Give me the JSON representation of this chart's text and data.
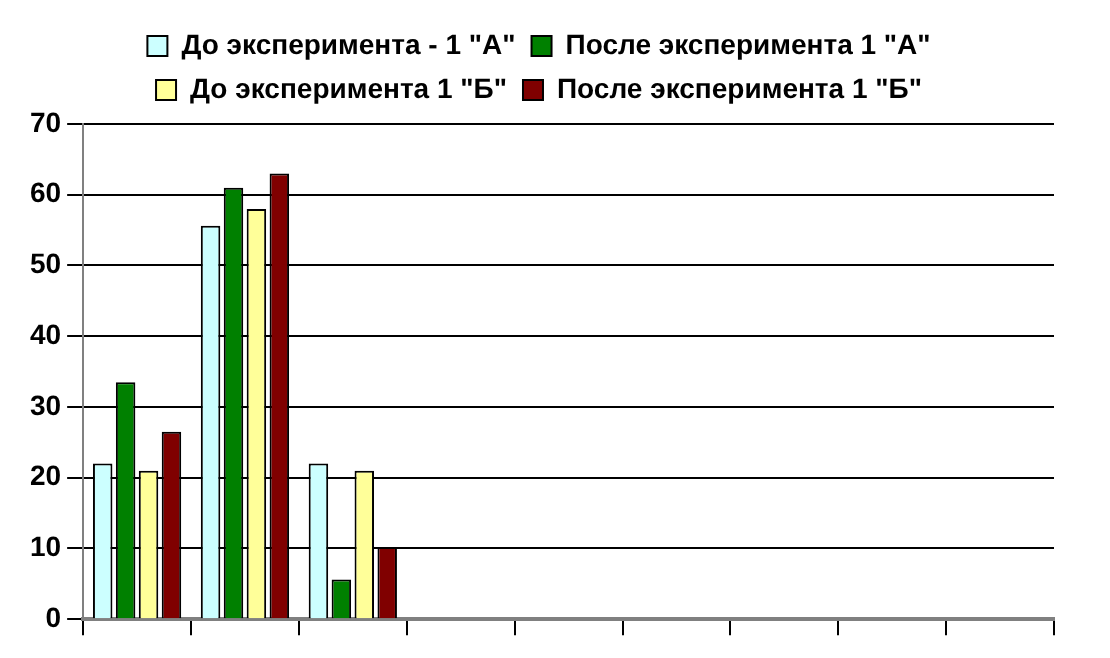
{
  "chart_data": {
    "type": "bar",
    "categories": [
      null,
      null,
      null,
      null,
      null,
      null,
      null,
      null,
      null
    ],
    "series": [
      {
        "name": "До эксперимента - 1 \"А\"",
        "color": "#ccffff",
        "values": [
          22,
          55.6,
          22,
          null,
          null,
          null,
          null,
          null,
          null
        ]
      },
      {
        "name": "После эксперимента 1 \"А\"",
        "color": "#008000",
        "values": [
          33.5,
          61,
          5.6,
          null,
          null,
          null,
          null,
          null,
          null
        ]
      },
      {
        "name": "До эксперимента 1 \"Б\"",
        "color": "#ffff99",
        "values": [
          21,
          58,
          21,
          null,
          null,
          null,
          null,
          null,
          null
        ]
      },
      {
        "name": "После эксперимента 1 \"Б\"",
        "color": "#800000",
        "values": [
          26.5,
          63,
          10.2,
          null,
          null,
          null,
          null,
          null,
          null
        ]
      }
    ],
    "ylim": [
      0,
      70
    ],
    "yticks": [
      0,
      10,
      20,
      30,
      40,
      50,
      60,
      70
    ],
    "grid": "y",
    "legend": "top",
    "tick_labels": "y"
  }
}
